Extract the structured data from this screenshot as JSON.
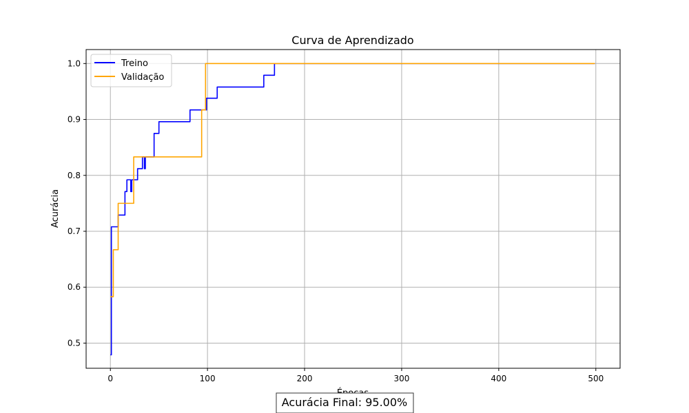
{
  "chart_data": {
    "type": "line",
    "title": "Curva de Aprendizado",
    "xlabel": "Épocas",
    "ylabel": "Acurácia",
    "xlim": [
      -25,
      525
    ],
    "ylim": [
      0.455,
      1.025
    ],
    "xticks": [
      0,
      100,
      200,
      300,
      400,
      500
    ],
    "xtick_labels": [
      "0",
      "100",
      "200",
      "300",
      "400",
      "500"
    ],
    "yticks": [
      0.5,
      0.6,
      0.7,
      0.8,
      0.9,
      1.0
    ],
    "ytick_labels": [
      "0.5",
      "0.6",
      "0.7",
      "0.8",
      "0.9",
      "1.0"
    ],
    "grid": true,
    "legend_position": "top-left",
    "series": [
      {
        "name": "Treino",
        "color": "#0000ff",
        "x": [
          0,
          1,
          1,
          8,
          8,
          10,
          10,
          15,
          15,
          17,
          17,
          20,
          20,
          21,
          21,
          22,
          22,
          25,
          25,
          28,
          28,
          30,
          30,
          33,
          33,
          35,
          35,
          36,
          36,
          37,
          37,
          45,
          45,
          46,
          46,
          50,
          50,
          52,
          52,
          82,
          82,
          97,
          97,
          99,
          99,
          108,
          108,
          110,
          110,
          158,
          158,
          169,
          169,
          171,
          171,
          499
        ],
        "y": [
          0.479,
          0.479,
          0.708,
          0.708,
          0.729,
          0.729,
          0.729,
          0.729,
          0.771,
          0.771,
          0.792,
          0.792,
          0.792,
          0.792,
          0.771,
          0.771,
          0.792,
          0.792,
          0.792,
          0.792,
          0.812,
          0.812,
          0.812,
          0.812,
          0.833,
          0.833,
          0.812,
          0.812,
          0.833,
          0.833,
          0.833,
          0.833,
          0.875,
          0.875,
          0.875,
          0.875,
          0.896,
          0.896,
          0.896,
          0.896,
          0.917,
          0.917,
          0.917,
          0.917,
          0.938,
          0.938,
          0.938,
          0.938,
          0.958,
          0.958,
          0.979,
          0.979,
          1.0,
          1.0,
          1.0,
          1.0
        ]
      },
      {
        "name": "Validação",
        "color": "#ffa500",
        "x": [
          0,
          3,
          3,
          8,
          8,
          10,
          10,
          24,
          24,
          26,
          26,
          94,
          94,
          98,
          98,
          499
        ],
        "y": [
          0.583,
          0.583,
          0.667,
          0.667,
          0.75,
          0.75,
          0.75,
          0.75,
          0.833,
          0.833,
          0.833,
          0.833,
          0.917,
          0.917,
          1.0,
          1.0
        ]
      }
    ],
    "annotation": "Acurácia Final: 95.00%"
  }
}
